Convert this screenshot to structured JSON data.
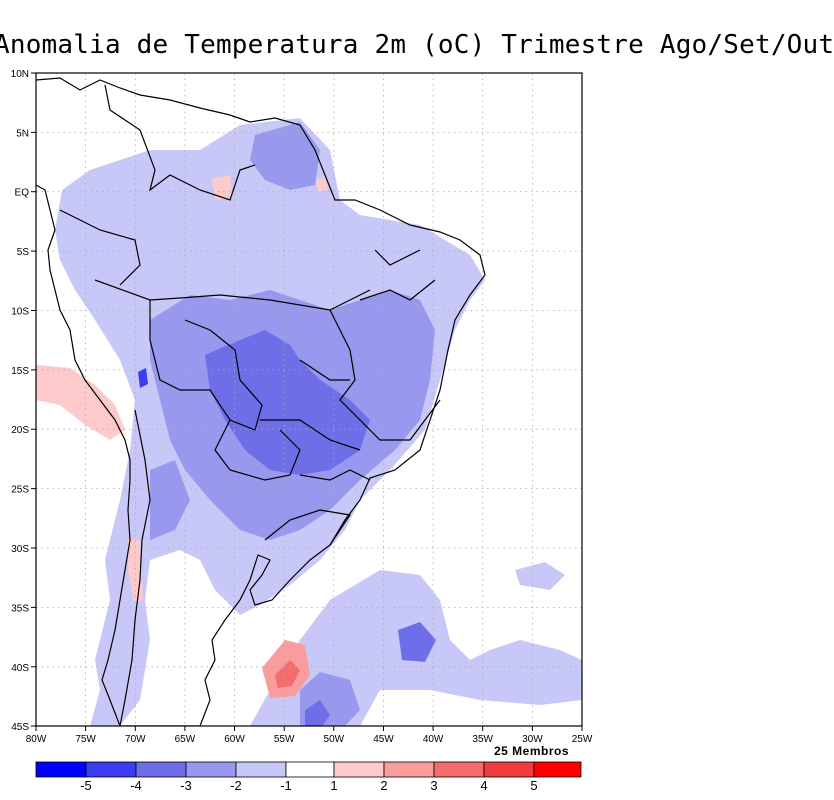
{
  "title": "Anomalia de Temperatura 2m (oC) Trimestre Ago/Set/Out",
  "members_label": "25 Membros",
  "axes": {
    "lon_labels": [
      "80W",
      "75W",
      "70W",
      "65W",
      "60W",
      "55W",
      "50W",
      "45W",
      "40W",
      "35W",
      "30W",
      "25W"
    ],
    "lat_labels": [
      "10N",
      "5N",
      "EQ",
      "5S",
      "10S",
      "15S",
      "20S",
      "25S",
      "30S",
      "35S",
      "40S",
      "45S"
    ]
  },
  "colorbar": {
    "labels": [
      "-5",
      "-4",
      "-3",
      "-2",
      "-1",
      "1",
      "2",
      "3",
      "4",
      "5"
    ],
    "colors": [
      "#0000ff",
      "#3c3cf0",
      "#6e6ee8",
      "#9898ef",
      "#c8c8f8",
      "#ffffff",
      "#fccaca",
      "#f89c9c",
      "#f46c6c",
      "#f03c3c",
      "#ff0000"
    ]
  }
}
